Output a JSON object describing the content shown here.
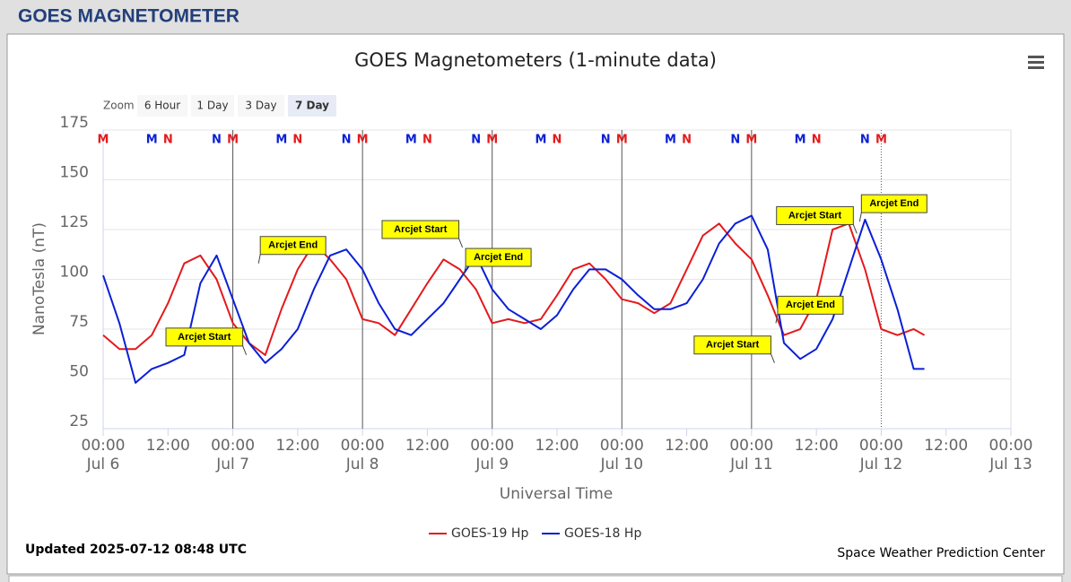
{
  "header": {
    "title": "GOES MAGNETOMETER"
  },
  "zoom": {
    "label": "Zoom",
    "buttons": [
      "6 Hour",
      "1 Day",
      "3 Day",
      "7 Day"
    ],
    "active": 3
  },
  "updated": "Updated 2025-07-12 08:48 UTC",
  "credit": "Space Weather Prediction Center",
  "chart_data": {
    "type": "line",
    "title": "GOES Magnetometers (1-minute data)",
    "x_label": "Universal Time",
    "y_label": "NanoTesla (nT)",
    "xlim": [
      "Jul 6 00:00",
      "Jul 13 00:00"
    ],
    "xticks": [
      {
        "value": "Jul 6 00:00",
        "label": "00:00",
        "sublabel": "Jul 6"
      },
      {
        "value": "Jul 6 12:00",
        "label": "12:00"
      },
      {
        "value": "Jul 7 00:00",
        "label": "00:00",
        "sublabel": "Jul 7"
      },
      {
        "value": "Jul 7 12:00",
        "label": "12:00"
      },
      {
        "value": "Jul 8 00:00",
        "label": "00:00",
        "sublabel": "Jul 8"
      },
      {
        "value": "Jul 8 12:00",
        "label": "12:00"
      },
      {
        "value": "Jul 9 00:00",
        "label": "00:00",
        "sublabel": "Jul 9"
      },
      {
        "value": "Jul 9 12:00",
        "label": "12:00"
      },
      {
        "value": "Jul 10 00:00",
        "label": "00:00",
        "sublabel": "Jul 10"
      },
      {
        "value": "Jul 10 12:00",
        "label": "12:00"
      },
      {
        "value": "Jul 11 00:00",
        "label": "00:00",
        "sublabel": "Jul 11"
      },
      {
        "value": "Jul 11 12:00",
        "label": "12:00"
      },
      {
        "value": "Jul 12 00:00",
        "label": "00:00",
        "sublabel": "Jul 12"
      },
      {
        "value": "Jul 12 12:00",
        "label": "12:00"
      },
      {
        "value": "Jul 13 00:00",
        "label": "00:00",
        "sublabel": "Jul 13"
      }
    ],
    "ylim": [
      25,
      175
    ],
    "yticks": [
      25,
      50,
      75,
      100,
      125,
      150,
      175
    ],
    "grid": true,
    "x": [
      "Jul 6 00:00",
      "Jul 6 03:00",
      "Jul 6 06:00",
      "Jul 6 09:00",
      "Jul 6 12:00",
      "Jul 6 15:00",
      "Jul 6 18:00",
      "Jul 6 21:00",
      "Jul 7 00:00",
      "Jul 7 03:00",
      "Jul 7 06:00",
      "Jul 7 09:00",
      "Jul 7 12:00",
      "Jul 7 15:00",
      "Jul 7 18:00",
      "Jul 7 21:00",
      "Jul 8 00:00",
      "Jul 8 03:00",
      "Jul 8 06:00",
      "Jul 8 09:00",
      "Jul 8 12:00",
      "Jul 8 15:00",
      "Jul 8 18:00",
      "Jul 8 21:00",
      "Jul 9 00:00",
      "Jul 9 03:00",
      "Jul 9 06:00",
      "Jul 9 09:00",
      "Jul 9 12:00",
      "Jul 9 15:00",
      "Jul 9 18:00",
      "Jul 9 21:00",
      "Jul 10 00:00",
      "Jul 10 03:00",
      "Jul 10 06:00",
      "Jul 10 09:00",
      "Jul 10 12:00",
      "Jul 10 15:00",
      "Jul 10 18:00",
      "Jul 10 21:00",
      "Jul 11 00:00",
      "Jul 11 03:00",
      "Jul 11 06:00",
      "Jul 11 09:00",
      "Jul 11 12:00",
      "Jul 11 15:00",
      "Jul 11 18:00",
      "Jul 11 21:00",
      "Jul 12 00:00",
      "Jul 12 03:00",
      "Jul 12 06:00",
      "Jul 12 08:00"
    ],
    "series": [
      {
        "name": "GOES-19 Hp",
        "color": "#e31a1c",
        "values": [
          72,
          65,
          65,
          72,
          88,
          108,
          112,
          100,
          78,
          68,
          62,
          85,
          105,
          118,
          110,
          100,
          80,
          78,
          72,
          85,
          98,
          110,
          105,
          95,
          78,
          80,
          78,
          80,
          92,
          105,
          108,
          100,
          90,
          88,
          83,
          88,
          105,
          122,
          128,
          118,
          110,
          92,
          72,
          75,
          90,
          125,
          128,
          105,
          75,
          72,
          75,
          72
        ]
      },
      {
        "name": "GOES-18 Hp",
        "color": "#0a1fd6",
        "values": [
          102,
          78,
          48,
          55,
          58,
          62,
          98,
          112,
          90,
          68,
          58,
          65,
          75,
          95,
          112,
          115,
          105,
          88,
          75,
          72,
          80,
          88,
          100,
          112,
          95,
          85,
          80,
          75,
          82,
          95,
          105,
          105,
          100,
          92,
          85,
          85,
          88,
          100,
          118,
          128,
          132,
          115,
          68,
          60,
          65,
          80,
          105,
          130,
          110,
          85,
          55,
          55
        ]
      }
    ],
    "markers": [
      {
        "x": "Jul 6 00:00",
        "label": "M",
        "color": "#e31a1c"
      },
      {
        "x": "Jul 6 09:00",
        "label": "M",
        "color": "#0a1fd6"
      },
      {
        "x": "Jul 6 12:00",
        "label": "N",
        "color": "#e31a1c"
      },
      {
        "x": "Jul 6 21:00",
        "label": "N",
        "color": "#0a1fd6"
      },
      {
        "x": "Jul 7 00:00",
        "label": "M",
        "color": "#e31a1c"
      },
      {
        "x": "Jul 7 09:00",
        "label": "M",
        "color": "#0a1fd6"
      },
      {
        "x": "Jul 7 12:00",
        "label": "N",
        "color": "#e31a1c"
      },
      {
        "x": "Jul 7 21:00",
        "label": "N",
        "color": "#0a1fd6"
      },
      {
        "x": "Jul 8 00:00",
        "label": "M",
        "color": "#e31a1c"
      },
      {
        "x": "Jul 8 09:00",
        "label": "M",
        "color": "#0a1fd6"
      },
      {
        "x": "Jul 8 12:00",
        "label": "N",
        "color": "#e31a1c"
      },
      {
        "x": "Jul 8 21:00",
        "label": "N",
        "color": "#0a1fd6"
      },
      {
        "x": "Jul 9 00:00",
        "label": "M",
        "color": "#e31a1c"
      },
      {
        "x": "Jul 9 09:00",
        "label": "M",
        "color": "#0a1fd6"
      },
      {
        "x": "Jul 9 12:00",
        "label": "N",
        "color": "#e31a1c"
      },
      {
        "x": "Jul 9 21:00",
        "label": "N",
        "color": "#0a1fd6"
      },
      {
        "x": "Jul 10 00:00",
        "label": "M",
        "color": "#e31a1c"
      },
      {
        "x": "Jul 10 09:00",
        "label": "M",
        "color": "#0a1fd6"
      },
      {
        "x": "Jul 10 12:00",
        "label": "N",
        "color": "#e31a1c"
      },
      {
        "x": "Jul 10 21:00",
        "label": "N",
        "color": "#0a1fd6"
      },
      {
        "x": "Jul 11 00:00",
        "label": "M",
        "color": "#e31a1c"
      },
      {
        "x": "Jul 11 09:00",
        "label": "M",
        "color": "#0a1fd6"
      },
      {
        "x": "Jul 11 12:00",
        "label": "N",
        "color": "#e31a1c"
      },
      {
        "x": "Jul 11 21:00",
        "label": "N",
        "color": "#0a1fd6"
      },
      {
        "x": "Jul 12 00:00",
        "label": "M",
        "color": "#e31a1c"
      }
    ],
    "annotations": [
      {
        "text": "Arcjet Start",
        "x": "Jul 7 02:30",
        "y": 62,
        "align": "left"
      },
      {
        "text": "Arcjet End",
        "x": "Jul 7 04:45",
        "y": 108,
        "align": "right"
      },
      {
        "text": "Arcjet Start",
        "x": "Jul 8 18:30",
        "y": 116,
        "align": "left"
      },
      {
        "text": "Arcjet End",
        "x": "Jul 8 18:45",
        "y": 102,
        "align": "right"
      },
      {
        "text": "Arcjet Start",
        "x": "Jul 11 04:15",
        "y": 58,
        "align": "left"
      },
      {
        "text": "Arcjet End",
        "x": "Jul 11 04:30",
        "y": 78,
        "align": "right"
      },
      {
        "text": "Arcjet Start",
        "x": "Jul 11 19:30",
        "y": 123,
        "align": "left"
      },
      {
        "text": "Arcjet End",
        "x": "Jul 11 20:00",
        "y": 129,
        "align": "right"
      }
    ]
  }
}
